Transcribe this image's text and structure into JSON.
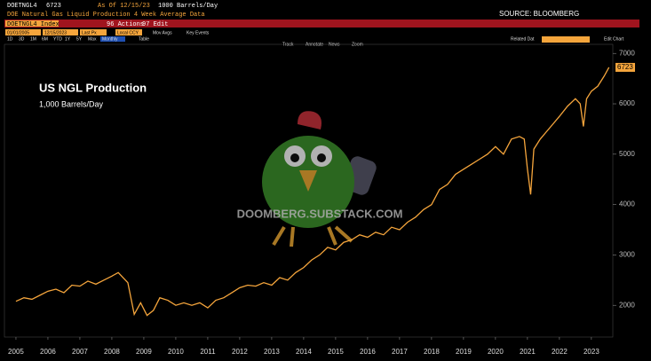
{
  "header": {
    "ticker": "DOETNGL4",
    "as_of": "As Of 12/15/23",
    "units": "1000 Barrels/Day",
    "description": "DOE Natural Gas Liquid Production 4 Week Average Data",
    "security": "DOETNGL4 Index",
    "actions": "96 Actions",
    "edit": "97 Edit"
  },
  "toolbar": {
    "start_date": "01/01/2005",
    "end_date": "12/15/2023",
    "field": "Last Px",
    "currency": "Local CCY",
    "mov_avgs": "Mov Avgs",
    "key_events": "Key Events",
    "related_data": "Related Dat",
    "edit_chart": "Edit Chart",
    "periods": [
      "1D",
      "3D",
      "1M",
      "6M",
      "YTD",
      "1Y",
      "5Y",
      "Max"
    ],
    "frequency": "Monthly",
    "table": "Table",
    "tools": [
      "Track",
      "Annotate",
      "News",
      "Zoom"
    ]
  },
  "chart_data": {
    "type": "line",
    "title": "US NGL Production",
    "subtitle": "1,000 Barrels/Day",
    "source": "SOURCE: BLOOMBERG",
    "watermark": "DOOMBERG.SUBSTACK.COM",
    "last_value": 6723,
    "x": [
      2005.0,
      2005.25,
      2005.5,
      2005.75,
      2006.0,
      2006.25,
      2006.5,
      2006.75,
      2007.0,
      2007.25,
      2007.5,
      2007.75,
      2008.0,
      2008.2,
      2008.5,
      2008.7,
      2008.9,
      2009.1,
      2009.3,
      2009.5,
      2009.75,
      2010.0,
      2010.25,
      2010.5,
      2010.75,
      2011.0,
      2011.25,
      2011.5,
      2011.75,
      2012.0,
      2012.25,
      2012.5,
      2012.75,
      2013.0,
      2013.25,
      2013.5,
      2013.75,
      2014.0,
      2014.25,
      2014.5,
      2014.75,
      2015.0,
      2015.25,
      2015.5,
      2015.75,
      2016.0,
      2016.25,
      2016.5,
      2016.75,
      2017.0,
      2017.25,
      2017.5,
      2017.75,
      2018.0,
      2018.25,
      2018.5,
      2018.75,
      2019.0,
      2019.25,
      2019.5,
      2019.75,
      2020.0,
      2020.25,
      2020.5,
      2020.75,
      2020.9,
      2021.0,
      2021.1,
      2021.2,
      2021.4,
      2021.6,
      2021.8,
      2022.0,
      2022.25,
      2022.5,
      2022.65,
      2022.75,
      2022.85,
      2023.0,
      2023.2,
      2023.4,
      2023.55
    ],
    "series": [
      {
        "color": "#f5a53c",
        "values": [
          2080,
          2150,
          2120,
          2200,
          2280,
          2320,
          2250,
          2400,
          2380,
          2480,
          2420,
          2500,
          2580,
          2650,
          2450,
          1820,
          2050,
          1800,
          1900,
          2150,
          2100,
          2000,
          2050,
          2000,
          2050,
          1950,
          2100,
          2150,
          2250,
          2350,
          2400,
          2380,
          2450,
          2400,
          2550,
          2500,
          2650,
          2750,
          2900,
          3000,
          3150,
          3100,
          3250,
          3300,
          3400,
          3350,
          3450,
          3400,
          3550,
          3500,
          3650,
          3750,
          3900,
          4000,
          4300,
          4400,
          4600,
          4700,
          4800,
          4900,
          5000,
          5150,
          5000,
          5300,
          5350,
          5300,
          4700,
          4200,
          5100,
          5300,
          5450,
          5600,
          5750,
          5950,
          6100,
          6000,
          5550,
          6100,
          6250,
          6350,
          6550,
          6723
        ]
      }
    ],
    "xlim": [
      2004.64,
      2023.67
    ],
    "ylim": [
      1370,
      7180
    ],
    "xticks": [
      2005,
      2006,
      2007,
      2008,
      2009,
      2010,
      2011,
      2012,
      2013,
      2014,
      2015,
      2016,
      2017,
      2018,
      2019,
      2020,
      2021,
      2022,
      2023
    ],
    "yticks": [
      2000,
      3000,
      4000,
      5000,
      6000,
      7000
    ]
  }
}
